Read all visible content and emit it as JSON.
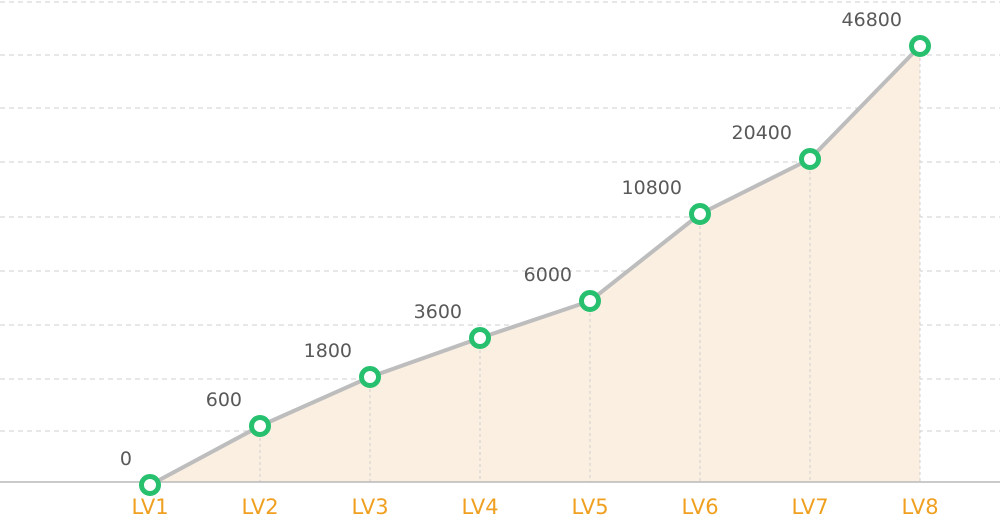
{
  "chart_data": {
    "type": "area",
    "categories": [
      "LV1",
      "LV2",
      "LV3",
      "LV4",
      "LV5",
      "LV6",
      "LV7",
      "LV8"
    ],
    "series": [
      {
        "values": [
          0,
          600,
          1800,
          3600,
          6000,
          10800,
          20400,
          46800
        ],
        "data_labels": [
          "0",
          "600",
          "1800",
          "3600",
          "6000",
          "10800",
          "20400",
          "46800"
        ]
      }
    ],
    "title": "",
    "xlabel": "",
    "ylabel": "",
    "grid": true,
    "legend": "none",
    "colors": {
      "line": "#bdbdbd",
      "area": "#fbefe2",
      "marker": "#27c06f",
      "tick_labels": "#f0a020",
      "data_labels": "#595959",
      "gridlines": "#cfcfcf"
    }
  }
}
